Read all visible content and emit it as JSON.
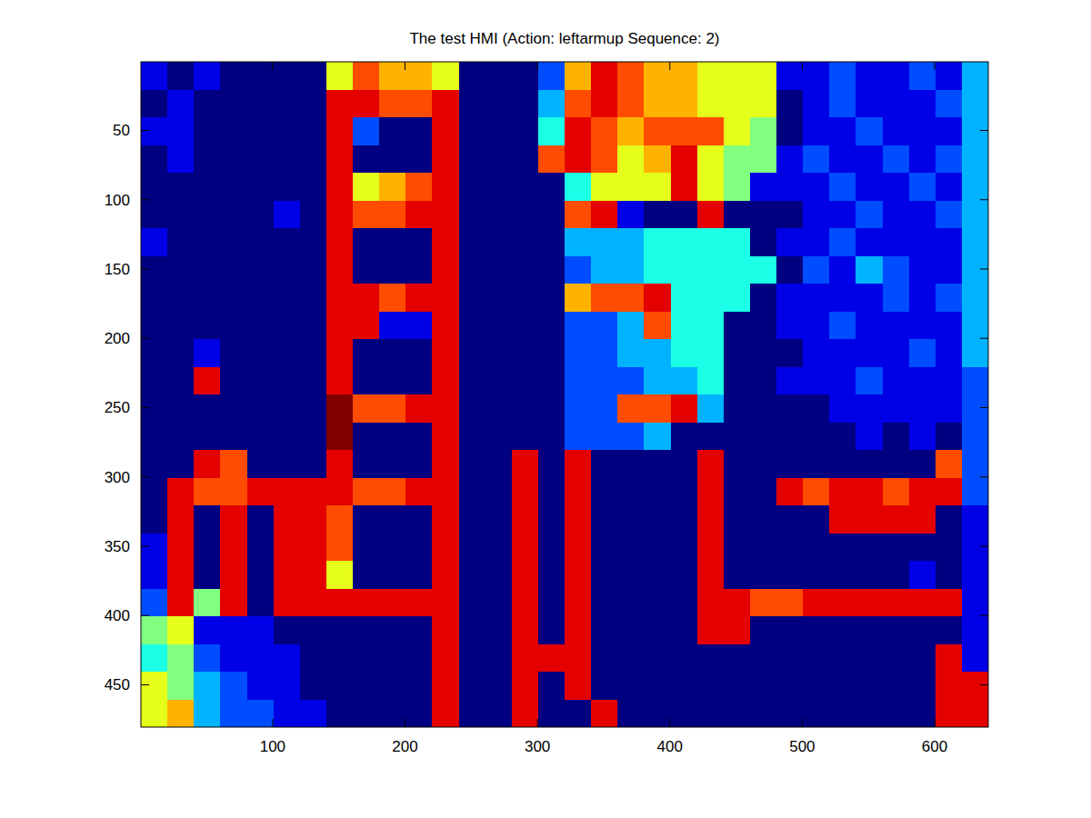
{
  "chart_data": {
    "type": "heatmap",
    "title": "The test HMI (Action: leftarmup Sequence: 2)",
    "xlim": [
      0.5,
      640.5
    ],
    "ylim": [
      0.5,
      480.5
    ],
    "xticks": [
      100,
      200,
      300,
      400,
      500,
      600
    ],
    "yticks": [
      50,
      100,
      150,
      200,
      250,
      300,
      350,
      400,
      450
    ],
    "x": [
      10.5,
      30.5,
      50.5,
      70.5,
      90.5,
      110.5,
      130.5,
      150.5,
      170.5,
      190.5,
      210.5,
      230.5,
      250.5,
      270.5,
      290.5,
      310.5,
      330.5,
      350.5,
      370.5,
      390.5,
      410.5,
      430.5,
      450.5,
      470.5,
      490.5,
      510.5,
      530.5,
      550.5,
      570.5,
      590.5,
      610.5,
      630.5
    ],
    "y": [
      10.5,
      30.5,
      50.5,
      70.5,
      90.5,
      110.5,
      130.5,
      150.5,
      170.5,
      190.5,
      210.5,
      230.5,
      250.5,
      270.5,
      290.5,
      310.5,
      330.5,
      350.5,
      370.5,
      390.5,
      410.5,
      430.5,
      450.5,
      470.5
    ],
    "color_range": [
      0,
      10
    ],
    "cells": [
      [
        1,
        0,
        1,
        0,
        0,
        0,
        0,
        6,
        8,
        7,
        7,
        6,
        0,
        0,
        0,
        2,
        7,
        9,
        8,
        7,
        7,
        6,
        6,
        6,
        1,
        1,
        2,
        1,
        1,
        2,
        1,
        3
      ],
      [
        0,
        1,
        0,
        0,
        0,
        0,
        0,
        9,
        9,
        8,
        8,
        9,
        0,
        0,
        0,
        3,
        8,
        9,
        8,
        7,
        7,
        6,
        6,
        6,
        0,
        1,
        2,
        1,
        1,
        1,
        2,
        3
      ],
      [
        1,
        1,
        0,
        0,
        0,
        0,
        0,
        9,
        2,
        0,
        0,
        9,
        0,
        0,
        0,
        4,
        9,
        8,
        7,
        8,
        8,
        8,
        6,
        5,
        0,
        1,
        1,
        2,
        1,
        1,
        1,
        3
      ],
      [
        0,
        1,
        0,
        0,
        0,
        0,
        0,
        9,
        0,
        0,
        0,
        9,
        0,
        0,
        0,
        8,
        9,
        8,
        6,
        7,
        9,
        6,
        5,
        5,
        1,
        2,
        1,
        1,
        2,
        1,
        2,
        3
      ],
      [
        0,
        0,
        0,
        0,
        0,
        0,
        0,
        9,
        6,
        7,
        8,
        9,
        0,
        0,
        0,
        0,
        4,
        6,
        6,
        6,
        9,
        6,
        5,
        1,
        1,
        1,
        2,
        1,
        1,
        2,
        1,
        3
      ],
      [
        0,
        0,
        0,
        0,
        0,
        1,
        0,
        9,
        8,
        8,
        9,
        9,
        0,
        0,
        0,
        0,
        8,
        9,
        1,
        0,
        0,
        9,
        0,
        0,
        0,
        1,
        1,
        2,
        1,
        1,
        2,
        3
      ],
      [
        1,
        0,
        0,
        0,
        0,
        0,
        0,
        9,
        0,
        0,
        0,
        9,
        0,
        0,
        0,
        0,
        3,
        3,
        3,
        4,
        4,
        4,
        4,
        0,
        1,
        1,
        2,
        1,
        1,
        1,
        1,
        3
      ],
      [
        0,
        0,
        0,
        0,
        0,
        0,
        0,
        9,
        0,
        0,
        0,
        9,
        0,
        0,
        0,
        0,
        2,
        3,
        3,
        4,
        4,
        4,
        4,
        4,
        0,
        2,
        1,
        3,
        2,
        1,
        1,
        3
      ],
      [
        0,
        0,
        0,
        0,
        0,
        0,
        0,
        9,
        9,
        8,
        9,
        9,
        0,
        0,
        0,
        0,
        7,
        8,
        8,
        9,
        4,
        4,
        4,
        0,
        1,
        1,
        1,
        1,
        2,
        1,
        2,
        3
      ],
      [
        0,
        0,
        0,
        0,
        0,
        0,
        0,
        9,
        9,
        1,
        1,
        9,
        0,
        0,
        0,
        0,
        2,
        2,
        3,
        8,
        4,
        4,
        0,
        0,
        1,
        1,
        2,
        1,
        1,
        1,
        1,
        3
      ],
      [
        0,
        0,
        1,
        0,
        0,
        0,
        0,
        9,
        0,
        0,
        0,
        9,
        0,
        0,
        0,
        0,
        2,
        2,
        3,
        3,
        4,
        4,
        0,
        0,
        0,
        1,
        1,
        1,
        1,
        2,
        1,
        3
      ],
      [
        0,
        0,
        9,
        0,
        0,
        0,
        0,
        9,
        0,
        0,
        0,
        9,
        0,
        0,
        0,
        0,
        2,
        2,
        2,
        3,
        3,
        4,
        0,
        0,
        1,
        1,
        1,
        2,
        1,
        1,
        1,
        2
      ],
      [
        0,
        0,
        0,
        0,
        0,
        0,
        0,
        10,
        8,
        8,
        9,
        9,
        0,
        0,
        0,
        0,
        2,
        2,
        8,
        8,
        9,
        3,
        0,
        0,
        0,
        0,
        1,
        1,
        1,
        1,
        1,
        2
      ],
      [
        0,
        0,
        0,
        0,
        0,
        0,
        0,
        10,
        0,
        0,
        0,
        9,
        0,
        0,
        0,
        0,
        2,
        2,
        2,
        3,
        0,
        0,
        0,
        0,
        0,
        0,
        0,
        1,
        0,
        1,
        0,
        2
      ],
      [
        0,
        0,
        9,
        8,
        0,
        0,
        0,
        9,
        0,
        0,
        0,
        9,
        0,
        0,
        9,
        0,
        9,
        0,
        0,
        0,
        0,
        9,
        0,
        0,
        0,
        0,
        0,
        0,
        0,
        0,
        8,
        2
      ],
      [
        0,
        9,
        8,
        8,
        9,
        9,
        9,
        9,
        8,
        8,
        9,
        9,
        0,
        0,
        9,
        0,
        9,
        0,
        0,
        0,
        0,
        9,
        0,
        0,
        9,
        8,
        9,
        9,
        8,
        9,
        9,
        2
      ],
      [
        0,
        9,
        0,
        9,
        0,
        9,
        9,
        8,
        0,
        0,
        0,
        9,
        0,
        0,
        9,
        0,
        9,
        0,
        0,
        0,
        0,
        9,
        0,
        0,
        0,
        0,
        9,
        9,
        9,
        9,
        0,
        1
      ],
      [
        1,
        9,
        0,
        9,
        0,
        9,
        9,
        8,
        0,
        0,
        0,
        9,
        0,
        0,
        9,
        0,
        9,
        0,
        0,
        0,
        0,
        9,
        0,
        0,
        0,
        0,
        0,
        0,
        0,
        0,
        0,
        1
      ],
      [
        1,
        9,
        0,
        9,
        0,
        9,
        9,
        6,
        0,
        0,
        0,
        9,
        0,
        0,
        9,
        0,
        9,
        0,
        0,
        0,
        0,
        9,
        0,
        0,
        0,
        0,
        0,
        0,
        0,
        1,
        0,
        1
      ],
      [
        2,
        9,
        5,
        9,
        0,
        9,
        9,
        9,
        9,
        9,
        9,
        9,
        0,
        0,
        9,
        0,
        9,
        0,
        0,
        0,
        0,
        9,
        9,
        8,
        8,
        9,
        9,
        9,
        9,
        9,
        9,
        1
      ],
      [
        5,
        6,
        1,
        1,
        1,
        0,
        0,
        0,
        0,
        0,
        0,
        9,
        0,
        0,
        9,
        0,
        9,
        0,
        0,
        0,
        0,
        9,
        9,
        0,
        0,
        0,
        0,
        0,
        0,
        0,
        0,
        1
      ],
      [
        4,
        5,
        2,
        1,
        1,
        1,
        0,
        0,
        0,
        0,
        0,
        9,
        0,
        0,
        9,
        9,
        9,
        0,
        0,
        0,
        0,
        0,
        0,
        0,
        0,
        0,
        0,
        0,
        0,
        0,
        9,
        1
      ],
      [
        6,
        5,
        3,
        2,
        1,
        1,
        0,
        0,
        0,
        0,
        0,
        9,
        0,
        0,
        9,
        0,
        9,
        0,
        0,
        0,
        0,
        0,
        0,
        0,
        0,
        0,
        0,
        0,
        0,
        0,
        9,
        9
      ],
      [
        6,
        7,
        3,
        2,
        2,
        1,
        1,
        0,
        0,
        0,
        0,
        9,
        0,
        0,
        9,
        0,
        0,
        9,
        0,
        0,
        0,
        0,
        0,
        0,
        0,
        0,
        0,
        0,
        0,
        0,
        9,
        9
      ]
    ]
  }
}
